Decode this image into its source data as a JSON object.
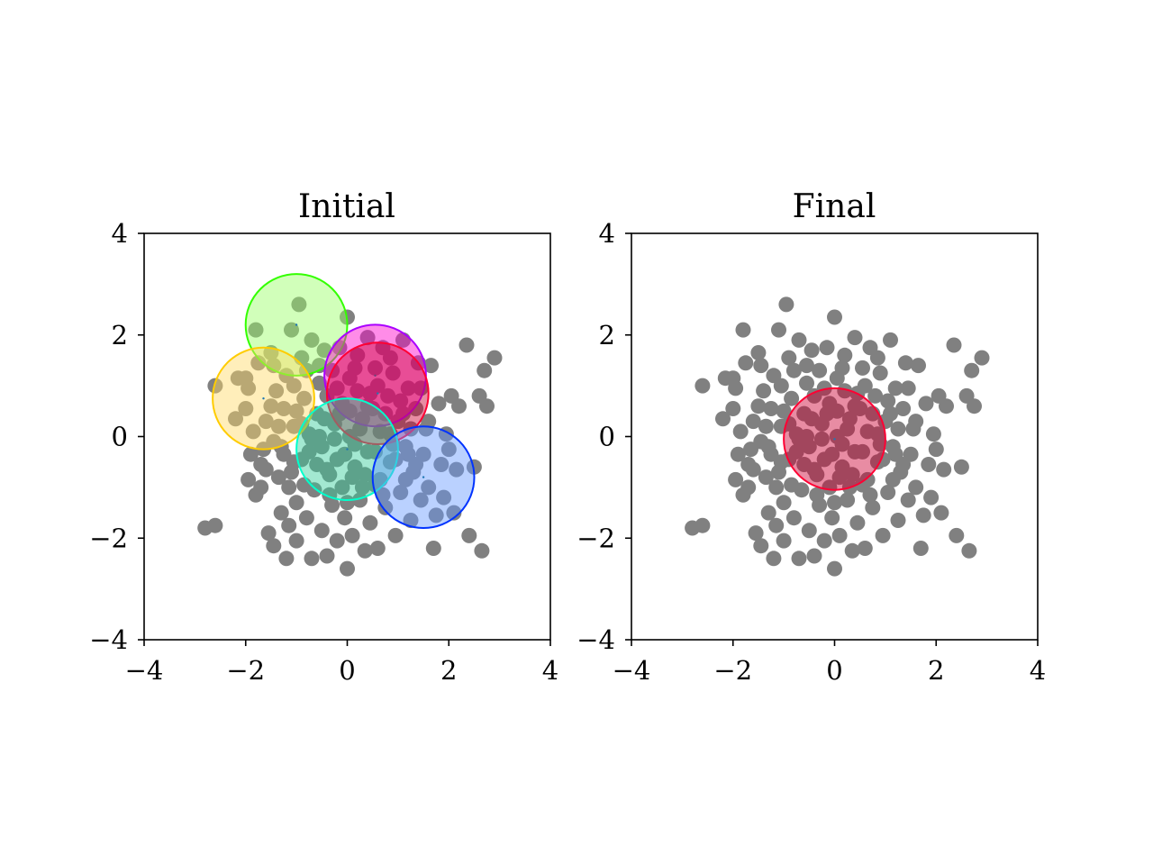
{
  "chart_data": [
    {
      "type": "scatter",
      "title": "Initial",
      "xlabel": "",
      "ylabel": "",
      "xlim": [
        -4,
        4
      ],
      "ylim": [
        -4,
        4
      ],
      "xticks": [
        "−4",
        "−2",
        "0",
        "2",
        "4"
      ],
      "yticks": [
        "−4",
        "−2",
        "0",
        "2",
        "4"
      ],
      "grid": false,
      "point_color": "#808080",
      "circles": [
        {
          "x": -1.0,
          "y": 2.2,
          "r": 1.0,
          "edge": "#33ff00",
          "fill": "#99ff66"
        },
        {
          "x": -1.65,
          "y": 0.75,
          "r": 1.0,
          "edge": "#ffcc00",
          "fill": "#ffd966"
        },
        {
          "x": 0.55,
          "y": 1.2,
          "r": 1.0,
          "edge": "#aa00ff",
          "fill": "#ff00cc"
        },
        {
          "x": 0.6,
          "y": 0.85,
          "r": 1.0,
          "edge": "#ff0033",
          "fill": "#cc0033"
        },
        {
          "x": 0.0,
          "y": -0.25,
          "r": 1.0,
          "edge": "#00ffcc",
          "fill": "#33cc99"
        },
        {
          "x": 1.5,
          "y": -0.8,
          "r": 1.0,
          "edge": "#0033ff",
          "fill": "#6699ff"
        }
      ]
    },
    {
      "type": "scatter",
      "title": "Final",
      "xlabel": "",
      "ylabel": "",
      "xlim": [
        -4,
        4
      ],
      "ylim": [
        -4,
        4
      ],
      "xticks": [
        "−4",
        "−2",
        "0",
        "2",
        "4"
      ],
      "yticks": [
        "−4",
        "−2",
        "0",
        "2",
        "4"
      ],
      "grid": false,
      "point_color": "#808080",
      "circles": [
        {
          "x": 0.0,
          "y": -0.05,
          "r": 1.0,
          "edge": "#ff0033",
          "fill": "#cc0033"
        }
      ]
    }
  ],
  "points": [
    [
      -2.8,
      -1.8
    ],
    [
      -2.6,
      -1.75
    ],
    [
      -2.6,
      1.0
    ],
    [
      -2.2,
      0.35
    ],
    [
      -2.15,
      1.15
    ],
    [
      -2.0,
      1.15
    ],
    [
      -2.0,
      0.55
    ],
    [
      -1.95,
      -0.85
    ],
    [
      -1.9,
      -0.35
    ],
    [
      -1.85,
      0.1
    ],
    [
      -1.8,
      -1.15
    ],
    [
      -1.8,
      2.1
    ],
    [
      -1.7,
      -1.0
    ],
    [
      -1.7,
      -0.55
    ],
    [
      -1.65,
      -0.25
    ],
    [
      -1.6,
      0.3
    ],
    [
      -1.55,
      -1.9
    ],
    [
      -1.5,
      1.65
    ],
    [
      -1.45,
      1.4
    ],
    [
      -1.45,
      -2.15
    ],
    [
      -1.4,
      0.9
    ],
    [
      -1.35,
      -0.8
    ],
    [
      -1.3,
      -1.5
    ],
    [
      -1.3,
      -0.2
    ],
    [
      -1.25,
      0.55
    ],
    [
      -1.2,
      -2.4
    ],
    [
      -1.15,
      -1.75
    ],
    [
      -1.1,
      2.1
    ],
    [
      -1.1,
      -0.7
    ],
    [
      -1.05,
      1.0
    ],
    [
      -1.05,
      0.2
    ],
    [
      -1.0,
      -1.3
    ],
    [
      -1.0,
      -2.05
    ],
    [
      -0.95,
      2.6
    ],
    [
      -0.9,
      1.55
    ],
    [
      -0.9,
      -0.45
    ],
    [
      -0.85,
      0.75
    ],
    [
      -0.8,
      1.3
    ],
    [
      -0.8,
      -1.6
    ],
    [
      -0.75,
      0.05
    ],
    [
      -0.7,
      -2.4
    ],
    [
      -0.7,
      1.9
    ],
    [
      -0.65,
      -1.05
    ],
    [
      -0.6,
      0.45
    ],
    [
      -0.55,
      1.05
    ],
    [
      -0.5,
      -0.2
    ],
    [
      -0.5,
      -1.85
    ],
    [
      -0.45,
      1.7
    ],
    [
      -0.4,
      -2.35
    ],
    [
      -0.4,
      0.8
    ],
    [
      -0.35,
      -0.75
    ],
    [
      -0.3,
      -1.35
    ],
    [
      -0.3,
      1.3
    ],
    [
      -0.25,
      0.25
    ],
    [
      -0.2,
      -2.05
    ],
    [
      -0.2,
      -0.45
    ],
    [
      -0.15,
      1.75
    ],
    [
      -0.1,
      0.65
    ],
    [
      -0.1,
      -1.0
    ],
    [
      -0.05,
      -1.6
    ],
    [
      0.0,
      2.35
    ],
    [
      0.0,
      -2.6
    ],
    [
      0.05,
      1.15
    ],
    [
      0.05,
      0.0
    ],
    [
      0.1,
      -1.95
    ],
    [
      0.15,
      -0.6
    ],
    [
      0.2,
      0.9
    ],
    [
      0.2,
      1.6
    ],
    [
      0.25,
      -1.25
    ],
    [
      0.3,
      0.35
    ],
    [
      0.35,
      -2.25
    ],
    [
      0.4,
      1.95
    ],
    [
      0.4,
      -0.3
    ],
    [
      0.45,
      -1.7
    ],
    [
      0.5,
      0.55
    ],
    [
      0.55,
      1.35
    ],
    [
      0.55,
      -0.95
    ],
    [
      0.6,
      -2.2
    ],
    [
      0.65,
      0.1
    ],
    [
      0.7,
      1.75
    ],
    [
      0.75,
      -1.4
    ],
    [
      0.8,
      0.8
    ],
    [
      0.85,
      -0.5
    ],
    [
      0.9,
      1.25
    ],
    [
      0.95,
      -1.95
    ],
    [
      1.0,
      0.3
    ],
    [
      1.05,
      -1.1
    ],
    [
      1.1,
      1.9
    ],
    [
      1.15,
      -0.2
    ],
    [
      1.2,
      0.95
    ],
    [
      1.25,
      -1.65
    ],
    [
      1.3,
      -0.7
    ],
    [
      1.35,
      0.55
    ],
    [
      1.4,
      1.45
    ],
    [
      1.45,
      -1.25
    ],
    [
      1.5,
      -0.35
    ],
    [
      1.55,
      0.15
    ],
    [
      1.6,
      -1.0
    ],
    [
      1.65,
      1.4
    ],
    [
      1.7,
      -2.2
    ],
    [
      1.75,
      -1.55
    ],
    [
      1.8,
      0.65
    ],
    [
      1.85,
      -0.55
    ],
    [
      1.9,
      -1.2
    ],
    [
      1.95,
      0.05
    ],
    [
      2.0,
      -0.25
    ],
    [
      2.05,
      0.8
    ],
    [
      2.1,
      -1.5
    ],
    [
      2.15,
      -0.65
    ],
    [
      2.2,
      0.6
    ],
    [
      2.35,
      1.8
    ],
    [
      2.4,
      -1.95
    ],
    [
      2.5,
      -0.6
    ],
    [
      2.6,
      0.8
    ],
    [
      2.65,
      -2.25
    ],
    [
      2.7,
      1.3
    ],
    [
      2.75,
      0.6
    ],
    [
      2.9,
      1.55
    ],
    [
      -1.95,
      0.95
    ],
    [
      -1.75,
      1.45
    ],
    [
      -1.6,
      -0.65
    ],
    [
      -1.45,
      -0.1
    ],
    [
      -1.35,
      0.2
    ],
    [
      -1.2,
      1.2
    ],
    [
      -1.15,
      -1.0
    ],
    [
      -1.0,
      0.5
    ],
    [
      -0.85,
      -0.95
    ],
    [
      -0.75,
      -0.3
    ],
    [
      -0.6,
      -0.55
    ],
    [
      -0.55,
      0.0
    ],
    [
      -0.45,
      0.35
    ],
    [
      -0.35,
      -1.15
    ],
    [
      -0.25,
      -0.05
    ],
    [
      -0.15,
      0.45
    ],
    [
      -0.05,
      -0.35
    ],
    [
      0.05,
      0.5
    ],
    [
      0.15,
      -0.15
    ],
    [
      0.25,
      0.15
    ],
    [
      0.35,
      -0.75
    ],
    [
      0.45,
      0.85
    ],
    [
      0.55,
      -0.3
    ],
    [
      0.65,
      -0.85
    ],
    [
      0.75,
      0.45
    ],
    [
      0.85,
      0.05
    ],
    [
      0.95,
      -0.45
    ],
    [
      1.05,
      0.7
    ],
    [
      1.15,
      -0.85
    ],
    [
      1.25,
      0.15
    ],
    [
      1.35,
      -0.55
    ],
    [
      1.45,
      0.95
    ],
    [
      -0.7,
      -0.05
    ],
    [
      -0.4,
      -0.65
    ],
    [
      0.1,
      -0.8
    ],
    [
      0.3,
      -1.0
    ],
    [
      0.6,
      1.0
    ],
    [
      0.9,
      -0.15
    ],
    [
      1.1,
      0.45
    ],
    [
      -1.05,
      -0.5
    ],
    [
      -0.2,
      0.95
    ],
    [
      0.4,
      0.6
    ],
    [
      -1.25,
      -0.35
    ],
    [
      -0.9,
      0.25
    ],
    [
      0.0,
      -1.3
    ],
    [
      0.7,
      -1.15
    ],
    [
      1.2,
      -0.35
    ],
    [
      -0.55,
      1.4
    ],
    [
      0.15,
      1.35
    ],
    [
      0.85,
      1.55
    ],
    [
      1.6,
      0.3
    ],
    [
      -1.5,
      0.6
    ]
  ]
}
